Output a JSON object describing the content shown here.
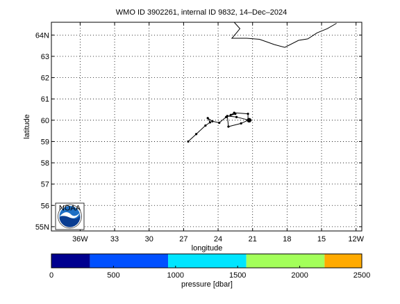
{
  "title": "WMO ID 3902261, internal ID 9832, 14–Dec–2024",
  "map": {
    "xlabel": "longitude",
    "ylabel": "latitude",
    "xlim": [
      -38.5,
      -11.5
    ],
    "ylim": [
      54.8,
      64.6
    ],
    "xticks": [
      {
        "value": -36,
        "label": "36W"
      },
      {
        "value": -33,
        "label": "33"
      },
      {
        "value": -30,
        "label": "30"
      },
      {
        "value": -27,
        "label": "27"
      },
      {
        "value": -24,
        "label": "24"
      },
      {
        "value": -21,
        "label": "21"
      },
      {
        "value": -18,
        "label": "18"
      },
      {
        "value": -15,
        "label": "15"
      },
      {
        "value": -12,
        "label": "12W"
      }
    ],
    "yticks": [
      {
        "value": 55,
        "label": "55N"
      },
      {
        "value": 56,
        "label": "56"
      },
      {
        "value": 57,
        "label": "57"
      },
      {
        "value": 58,
        "label": "58"
      },
      {
        "value": 59,
        "label": "59"
      },
      {
        "value": 60,
        "label": "60"
      },
      {
        "value": 61,
        "label": "61"
      },
      {
        "value": 62,
        "label": "62"
      },
      {
        "value": 63,
        "label": "63"
      },
      {
        "value": 64,
        "label": "64N"
      }
    ],
    "grid": true,
    "coastline": [
      [
        -22.6,
        64.6
      ],
      [
        -22.1,
        64.3
      ],
      [
        -22.4,
        64.1
      ],
      [
        -22.8,
        63.85
      ],
      [
        -21.5,
        63.85
      ],
      [
        -20.4,
        63.8
      ],
      [
        -19.1,
        63.55
      ],
      [
        -18.2,
        63.42
      ],
      [
        -17.0,
        63.75
      ],
      [
        -16.2,
        63.82
      ],
      [
        -15.4,
        64.1
      ],
      [
        -14.5,
        64.3
      ],
      [
        -13.7,
        64.55
      ]
    ]
  },
  "chart_data": {
    "type": "scatter",
    "series": [
      {
        "marker_color": "#000000",
        "track": [
          [
            -26.6,
            59.0
          ],
          [
            -25.9,
            59.35
          ],
          [
            -25.1,
            59.75
          ],
          [
            -24.7,
            59.9
          ],
          [
            -24.9,
            60.1
          ],
          [
            -24.5,
            59.95
          ],
          [
            -23.9,
            59.88
          ],
          [
            -23.3,
            60.15
          ],
          [
            -22.5,
            60.3
          ],
          [
            -22.9,
            60.25
          ],
          [
            -22.6,
            60.35
          ],
          [
            -21.4,
            60.3
          ],
          [
            -21.4,
            60.0
          ],
          [
            -22.0,
            59.85
          ],
          [
            -23.1,
            59.7
          ],
          [
            -23.2,
            60.2
          ],
          [
            -22.4,
            60.15
          ],
          [
            -21.3,
            60.0
          ]
        ],
        "last_position": [
          -21.3,
          60.0
        ]
      }
    ]
  },
  "colorbar": {
    "label": "pressure [dbar]",
    "ticks": [
      {
        "value": 0,
        "label": "0"
      },
      {
        "value": 500,
        "label": "500"
      },
      {
        "value": 1000,
        "label": "1000"
      },
      {
        "value": 1500,
        "label": "1500"
      },
      {
        "value": 2000,
        "label": "2000"
      },
      {
        "value": 2500,
        "label": "2500"
      }
    ],
    "range": [
      0,
      2500
    ],
    "segments": [
      {
        "from": 0,
        "to": 310,
        "color": "#00008f"
      },
      {
        "from": 310,
        "to": 940,
        "color": "#0050ff"
      },
      {
        "from": 940,
        "to": 1570,
        "color": "#00e5ff"
      },
      {
        "from": 1570,
        "to": 2200,
        "color": "#a3ff5a"
      },
      {
        "from": 2200,
        "to": 2500,
        "color": "#ffaa00"
      }
    ]
  },
  "logo": {
    "text": "NOAA",
    "colors": {
      "sky": "#1e6fc4",
      "sea": "#0a3d91",
      "bird": "#ffffff"
    }
  }
}
